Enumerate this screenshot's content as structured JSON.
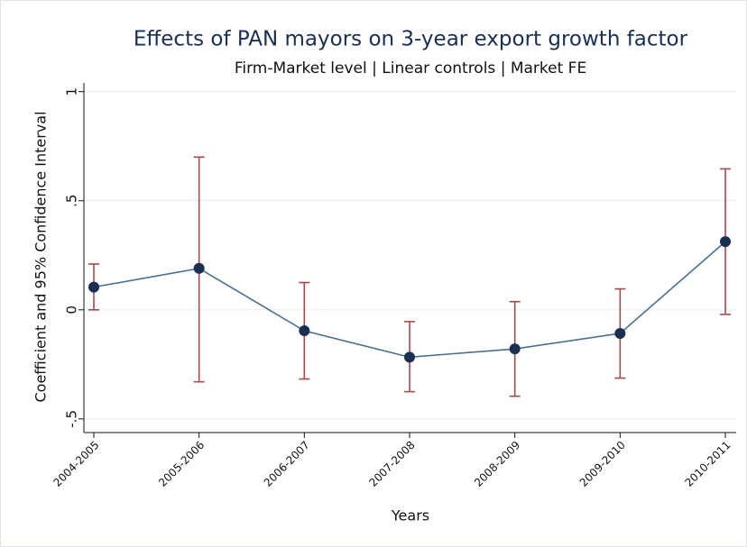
{
  "chart_data": {
    "type": "line",
    "title": "Effects of PAN mayors on 3-year export growth factor",
    "subtitle": "Firm-Market level | Linear controls | Market FE",
    "x_label": "Years",
    "y_label": "Coefficient and 95% Confidence Interval",
    "categories": [
      "2004-2005",
      "2005-2006",
      "2006-2007",
      "2007-2008",
      "2008-2009",
      "2009-2010",
      "2010-2011"
    ],
    "values": [
      0.104,
      0.19,
      -0.096,
      -0.217,
      -0.179,
      -0.108,
      0.3125
    ],
    "ci_low": [
      0.0,
      -0.33,
      -0.317,
      -0.375,
      -0.396,
      -0.313,
      -0.021
    ],
    "ci_high": [
      0.21,
      0.7,
      0.125,
      -0.054,
      0.0375,
      0.096,
      0.646
    ],
    "line_color": "#4a6f8f",
    "marker_color": "#1a2f52",
    "ci_color": "#a5494b",
    "ylim": [
      -0.5625,
      1.04
    ],
    "yticks": [
      1,
      {
        "value": 0.5,
        "label": ".5"
      },
      0,
      {
        "value": -0.5,
        "label": "-.5"
      }
    ],
    "grid": true
  }
}
